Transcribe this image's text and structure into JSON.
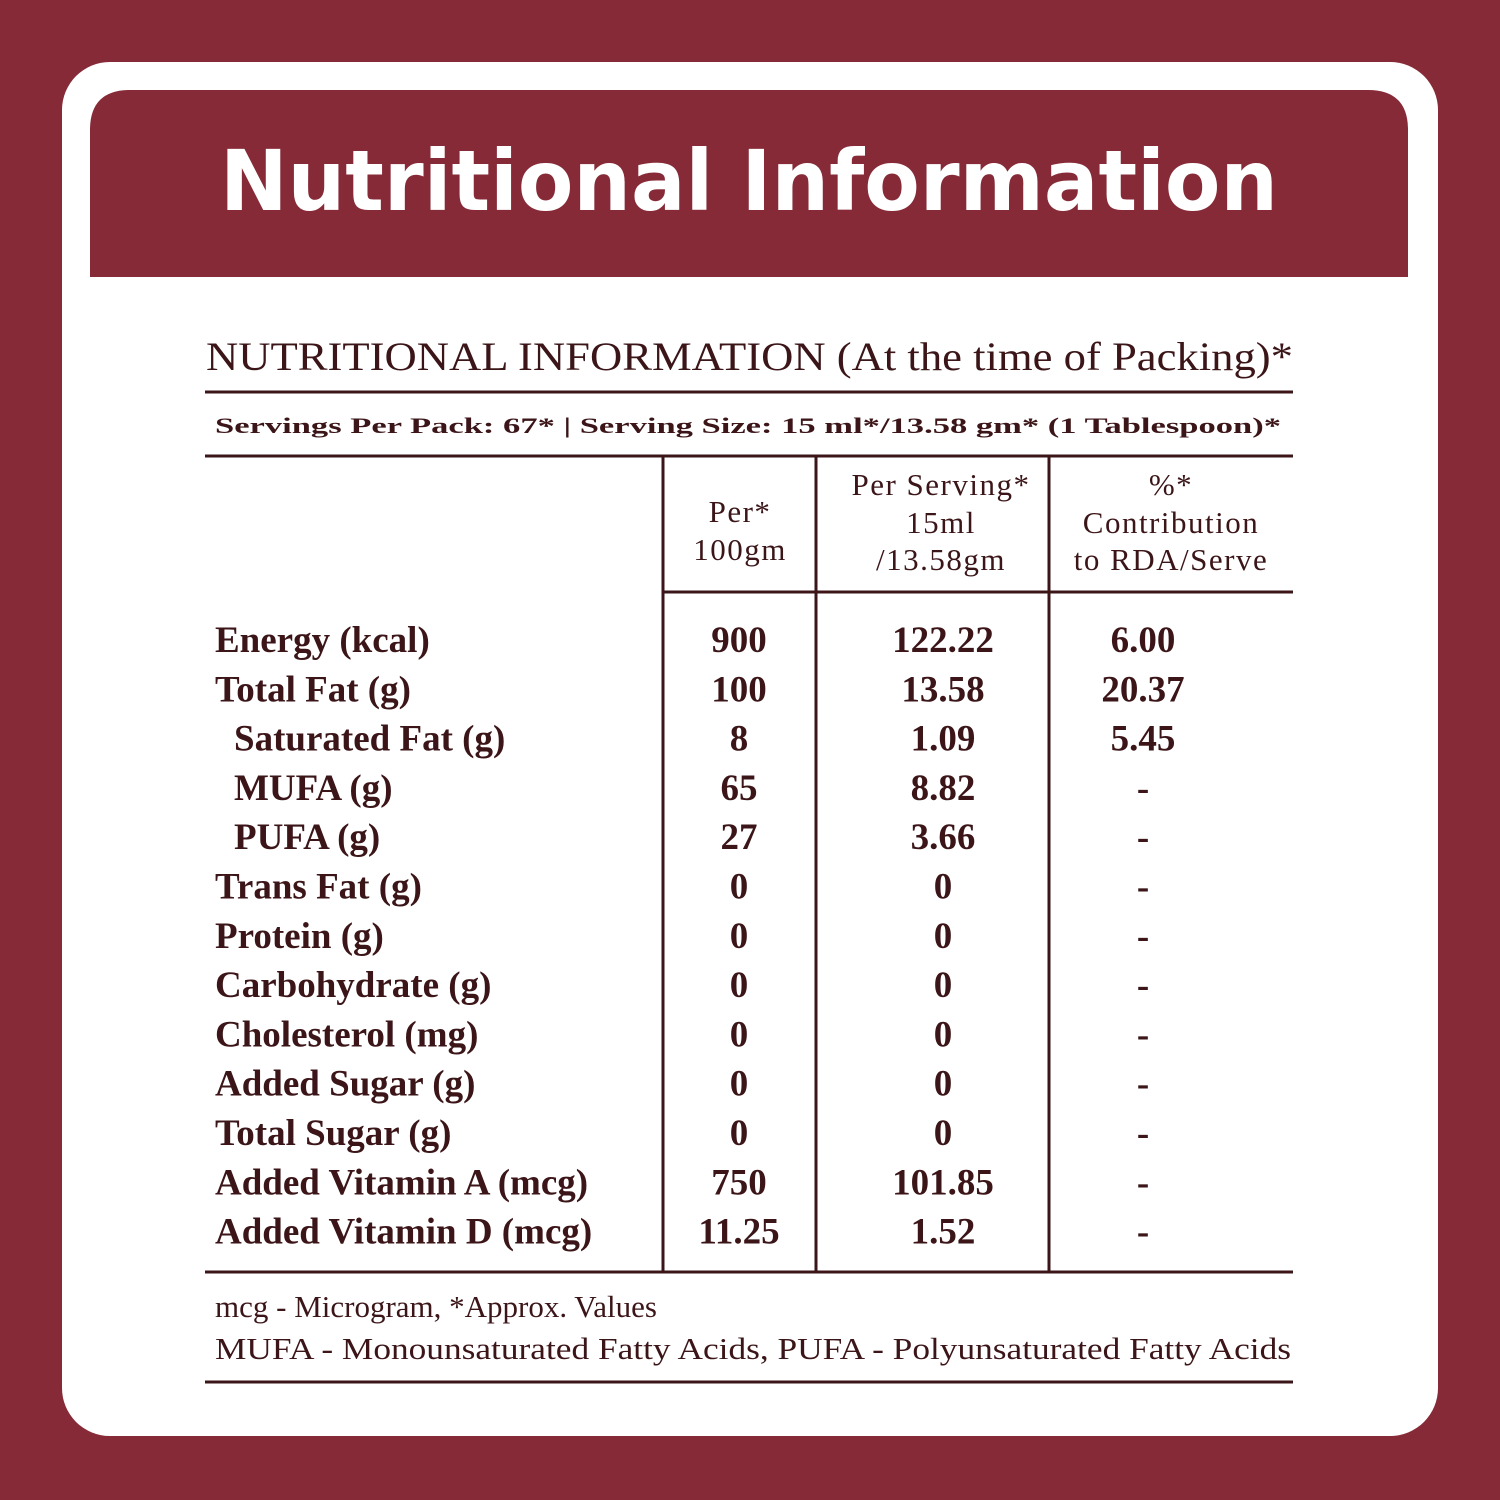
{
  "header": {
    "title": "Nutritional Information"
  },
  "table": {
    "title": "NUTRITIONAL INFORMATION (At the time of Packing)*",
    "serving_info": "Servings Per Pack: 67*  |  Serving Size: 15 ml*/13.58 gm* (1 Tablespoon)*",
    "columns": [
      [
        "Per*",
        "100gm"
      ],
      [
        "Per Serving*",
        "15ml",
        "/13.58gm"
      ],
      [
        "%*",
        "Contribution",
        "to RDA/Serve"
      ]
    ],
    "rows": [
      {
        "name": "Energy (kcal)",
        "level": 0,
        "values": [
          "900",
          "122.22",
          "6.00"
        ]
      },
      {
        "name": "Total Fat (g)",
        "level": 0,
        "values": [
          "100",
          "13.58",
          "20.37"
        ]
      },
      {
        "name": "Saturated Fat (g)",
        "level": 1,
        "values": [
          "8",
          "1.09",
          "5.45"
        ]
      },
      {
        "name": "MUFA (g)",
        "level": 1,
        "values": [
          "65",
          "8.82",
          "-"
        ]
      },
      {
        "name": "PUFA (g)",
        "level": 1,
        "values": [
          "27",
          "3.66",
          "-"
        ]
      },
      {
        "name": "Trans Fat (g)",
        "level": 0,
        "values": [
          "0",
          "0",
          "-"
        ]
      },
      {
        "name": "Protein (g)",
        "level": 0,
        "values": [
          "0",
          "0",
          "-"
        ]
      },
      {
        "name": "Carbohydrate (g)",
        "level": 0,
        "values": [
          "0",
          "0",
          "-"
        ]
      },
      {
        "name": "Cholesterol (mg)",
        "level": 0,
        "values": [
          "0",
          "0",
          "-"
        ]
      },
      {
        "name": "Added Sugar (g)",
        "level": 0,
        "values": [
          "0",
          "0",
          "-"
        ]
      },
      {
        "name": "Total Sugar (g)",
        "level": 0,
        "values": [
          "0",
          "0",
          "-"
        ]
      },
      {
        "name": "Added Vitamin A (mcg)",
        "level": 0,
        "values": [
          "750",
          "101.85",
          "-"
        ]
      },
      {
        "name": "Added Vitamin D (mcg)",
        "level": 0,
        "values": [
          "11.25",
          "1.52",
          "-"
        ]
      }
    ],
    "notes": [
      "mcg - Microgram, *Approx. Values",
      "MUFA - Monounsaturated Fatty Acids, PUFA - Polyunsaturated Fatty Acids"
    ]
  }
}
